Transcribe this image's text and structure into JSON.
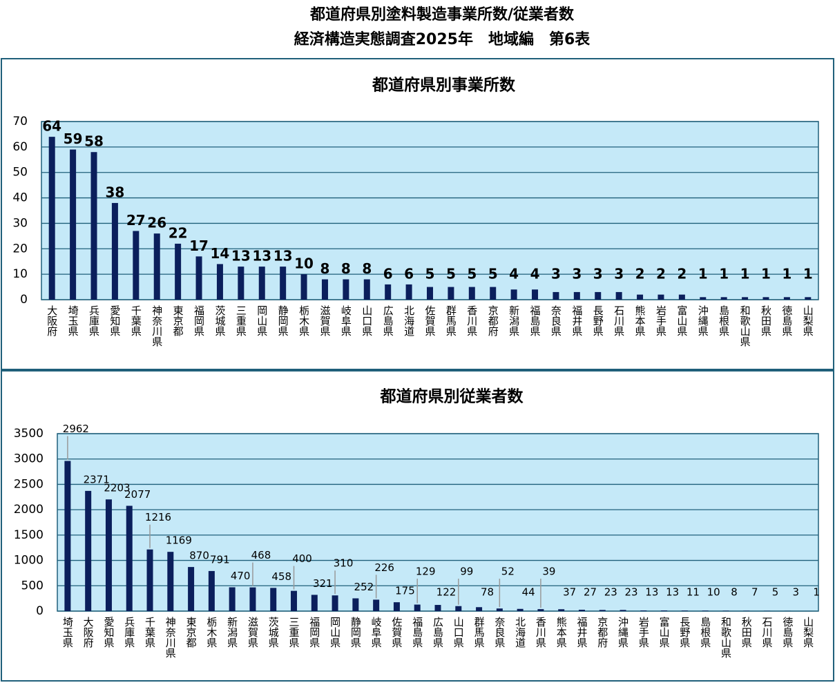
{
  "header": {
    "title": [
      "都道府県別塗料製造事業所数/従業者数",
      "経済構造実態調査2025年　地域編　第6表"
    ]
  },
  "chart_data": [
    {
      "type": "bar",
      "title": "都道府県別事業所数",
      "categories": [
        "大阪府",
        "埼玉県",
        "兵庫県",
        "愛知県",
        "千葉県",
        "神奈川県",
        "東京都",
        "福岡県",
        "茨城県",
        "三重県",
        "岡山県",
        "静岡県",
        "栃木県",
        "滋賀県",
        "岐阜県",
        "山口県",
        "広島県",
        "北海道",
        "佐賀県",
        "群馬県",
        "香川県",
        "京都府",
        "新潟県",
        "福島県",
        "奈良県",
        "福井県",
        "長野県",
        "石川県",
        "熊本県",
        "岩手県",
        "富山県",
        "沖縄県",
        "島根県",
        "和歌山県",
        "秋田県",
        "徳島県",
        "山梨県"
      ],
      "values": [
        64,
        59,
        58,
        38,
        27,
        26,
        22,
        17,
        14,
        13,
        13,
        13,
        10,
        8,
        8,
        8,
        6,
        6,
        5,
        5,
        5,
        5,
        4,
        4,
        3,
        3,
        3,
        3,
        2,
        2,
        2,
        1,
        1,
        1,
        1,
        1,
        1
      ],
      "color": "#0b1f5c",
      "ylim": [
        0,
        70
      ],
      "yticks": [
        0,
        10,
        20,
        30,
        40,
        50,
        60,
        70
      ],
      "grid": true
    },
    {
      "type": "bar",
      "title": "都道府県別従業者数",
      "categories": [
        "埼玉県",
        "大阪府",
        "愛知県",
        "兵庫県",
        "千葉県",
        "神奈川県",
        "東京都",
        "栃木県",
        "新潟県",
        "滋賀県",
        "茨城県",
        "三重県",
        "福岡県",
        "岡山県",
        "静岡県",
        "岐阜県",
        "佐賀県",
        "福島県",
        "広島県",
        "山口県",
        "群馬県",
        "奈良県",
        "北海道",
        "香川県",
        "熊本県",
        "福井県",
        "京都府",
        "沖縄県",
        "岩手県",
        "富山県",
        "長野県",
        "島根県",
        "和歌山県",
        "秋田県",
        "石川県",
        "徳島県",
        "山梨県"
      ],
      "values": [
        2962,
        2371,
        2203,
        2077,
        1216,
        1169,
        870,
        791,
        470,
        468,
        458,
        400,
        321,
        310,
        252,
        226,
        175,
        129,
        122,
        99,
        78,
        52,
        44,
        39,
        37,
        27,
        23,
        23,
        13,
        13,
        11,
        10,
        8,
        7,
        5,
        3,
        1
      ],
      "color": "#0b1f5c",
      "ylim": [
        0,
        3500
      ],
      "yticks": [
        0,
        500,
        1000,
        1500,
        2000,
        2500,
        3000,
        3500
      ],
      "grid": true
    }
  ]
}
